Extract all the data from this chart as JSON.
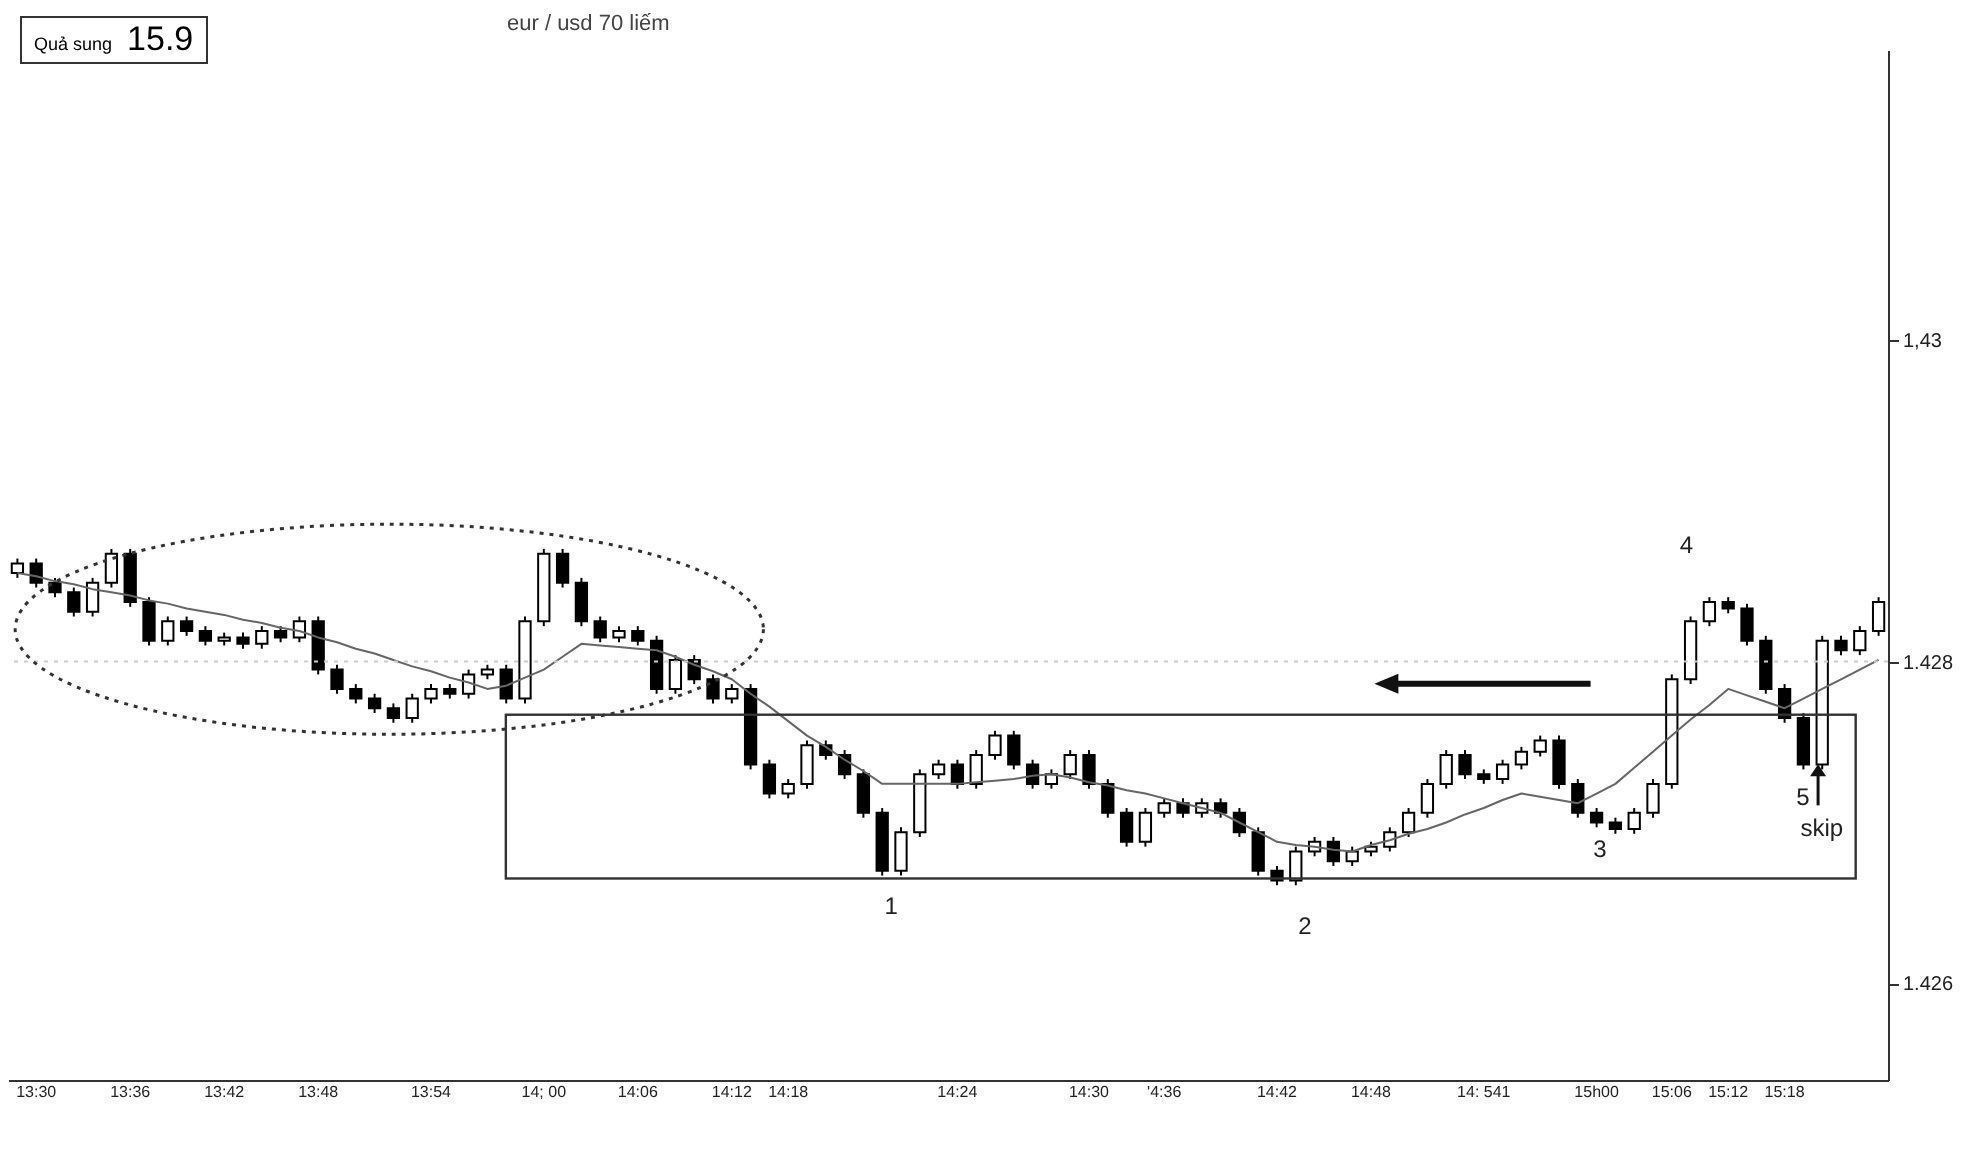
{
  "chart_data": {
    "type": "candlestick",
    "title": "eur / usd 70 liếm",
    "categories": [
      null,
      "13:30",
      null,
      null,
      null,
      null,
      "13:36",
      null,
      null,
      null,
      null,
      "13:42",
      null,
      null,
      null,
      null,
      "13:48",
      null,
      null,
      null,
      null,
      null,
      "13:54",
      null,
      null,
      null,
      null,
      null,
      "14; 00",
      null,
      null,
      null,
      null,
      "14:06",
      null,
      null,
      null,
      null,
      "14:12",
      null,
      null,
      "14:18",
      null,
      null,
      null,
      null,
      null,
      null,
      null,
      null,
      "14:24",
      null,
      null,
      null,
      null,
      null,
      null,
      "14:30",
      null,
      null,
      null,
      "'4:36",
      null,
      null,
      null,
      null,
      null,
      "14:42",
      null,
      null,
      null,
      null,
      "14:48",
      null,
      null,
      null,
      null,
      null,
      "14: 541",
      null,
      null,
      null,
      null,
      null,
      "15h00",
      null,
      null,
      null,
      "15:06",
      null,
      null,
      "15:12",
      null,
      null,
      "15:18",
      null,
      null,
      null,
      null,
      null
    ],
    "ohlc": [
      [
        1.42855,
        1.42864,
        1.42852,
        1.42861
      ],
      [
        1.42861,
        1.42864,
        1.42846,
        1.42849
      ],
      [
        1.42849,
        1.42852,
        1.4284,
        1.42843
      ],
      [
        1.42843,
        1.42846,
        1.42828,
        1.42831
      ],
      [
        1.42831,
        1.42852,
        1.42828,
        1.42849
      ],
      [
        1.42849,
        1.4287,
        1.42846,
        1.42867
      ],
      [
        1.42867,
        1.4287,
        1.42834,
        1.42837
      ],
      [
        1.42837,
        1.4284,
        1.4281,
        1.42813
      ],
      [
        1.42813,
        1.42828,
        1.4281,
        1.42825
      ],
      [
        1.42825,
        1.42828,
        1.42816,
        1.42819
      ],
      [
        1.42819,
        1.42822,
        1.4281,
        1.42813
      ],
      [
        1.42813,
        1.42818,
        1.4281,
        1.42815
      ],
      [
        1.42815,
        1.42818,
        1.42808,
        1.42811
      ],
      [
        1.42811,
        1.42822,
        1.42808,
        1.42819
      ],
      [
        1.42819,
        1.42822,
        1.42812,
        1.42815
      ],
      [
        1.42815,
        1.42828,
        1.42812,
        1.42825
      ],
      [
        1.42825,
        1.42828,
        1.42792,
        1.42795
      ],
      [
        1.42795,
        1.42798,
        1.4278,
        1.42783
      ],
      [
        1.42783,
        1.42786,
        1.42774,
        1.42777
      ],
      [
        1.42777,
        1.4278,
        1.42768,
        1.42771
      ],
      [
        1.42771,
        1.42774,
        1.42762,
        1.42765
      ],
      [
        1.42765,
        1.4278,
        1.42762,
        1.42777
      ],
      [
        1.42777,
        1.42786,
        1.42774,
        1.42783
      ],
      [
        1.42783,
        1.42786,
        1.42777,
        1.4278
      ],
      [
        1.4278,
        1.42795,
        1.42777,
        1.42792
      ],
      [
        1.42792,
        1.42798,
        1.42789,
        1.42795
      ],
      [
        1.42795,
        1.42798,
        1.42774,
        1.42777
      ],
      [
        1.42777,
        1.42828,
        1.42774,
        1.42825
      ],
      [
        1.42825,
        1.4287,
        1.42822,
        1.42867
      ],
      [
        1.42867,
        1.4287,
        1.42846,
        1.42849
      ],
      [
        1.42849,
        1.42852,
        1.42822,
        1.42825
      ],
      [
        1.42825,
        1.42828,
        1.42812,
        1.42815
      ],
      [
        1.42815,
        1.42822,
        1.42812,
        1.42819
      ],
      [
        1.42819,
        1.42822,
        1.4281,
        1.42813
      ],
      [
        1.42813,
        1.42816,
        1.4278,
        1.42783
      ],
      [
        1.42783,
        1.42804,
        1.4278,
        1.42801
      ],
      [
        1.42801,
        1.42804,
        1.42786,
        1.42789
      ],
      [
        1.42789,
        1.42792,
        1.42774,
        1.42777
      ],
      [
        1.42777,
        1.42786,
        1.42774,
        1.42783
      ],
      [
        1.42783,
        1.42786,
        1.42733,
        1.42736
      ],
      [
        1.42736,
        1.42739,
        1.42715,
        1.42718
      ],
      [
        1.42718,
        1.42727,
        1.42715,
        1.42724
      ],
      [
        1.42724,
        1.42751,
        1.42721,
        1.42748
      ],
      [
        1.42748,
        1.42751,
        1.42739,
        1.42742
      ],
      [
        1.42742,
        1.42745,
        1.42727,
        1.4273
      ],
      [
        1.4273,
        1.42733,
        1.42703,
        1.42706
      ],
      [
        1.42706,
        1.42709,
        1.42667,
        1.4267
      ],
      [
        1.4267,
        1.42697,
        1.42667,
        1.42694
      ],
      [
        1.42694,
        1.42733,
        1.42691,
        1.4273
      ],
      [
        1.4273,
        1.42739,
        1.42727,
        1.42736
      ],
      [
        1.42736,
        1.42739,
        1.42721,
        1.42724
      ],
      [
        1.42724,
        1.42745,
        1.42721,
        1.42742
      ],
      [
        1.42742,
        1.42757,
        1.42739,
        1.42754
      ],
      [
        1.42754,
        1.42757,
        1.42733,
        1.42736
      ],
      [
        1.42736,
        1.42739,
        1.42721,
        1.42724
      ],
      [
        1.42724,
        1.42733,
        1.42721,
        1.4273
      ],
      [
        1.4273,
        1.42745,
        1.42727,
        1.42742
      ],
      [
        1.42742,
        1.42745,
        1.42721,
        1.42724
      ],
      [
        1.42724,
        1.42727,
        1.42703,
        1.42706
      ],
      [
        1.42706,
        1.42709,
        1.42685,
        1.42688
      ],
      [
        1.42688,
        1.42709,
        1.42685,
        1.42706
      ],
      [
        1.42706,
        1.42715,
        1.42703,
        1.42712
      ],
      [
        1.42712,
        1.42715,
        1.42703,
        1.42706
      ],
      [
        1.42706,
        1.42715,
        1.42703,
        1.42712
      ],
      [
        1.42712,
        1.42715,
        1.42703,
        1.42706
      ],
      [
        1.42706,
        1.42709,
        1.42691,
        1.42694
      ],
      [
        1.42694,
        1.42697,
        1.42667,
        1.4267
      ],
      [
        1.4267,
        1.42673,
        1.42661,
        1.42664
      ],
      [
        1.42664,
        1.42685,
        1.42661,
        1.42682
      ],
      [
        1.42682,
        1.42691,
        1.42679,
        1.42688
      ],
      [
        1.42688,
        1.42691,
        1.42673,
        1.42676
      ],
      [
        1.42676,
        1.42685,
        1.42673,
        1.42682
      ],
      [
        1.42682,
        1.42688,
        1.42679,
        1.42685
      ],
      [
        1.42685,
        1.42697,
        1.42682,
        1.42694
      ],
      [
        1.42694,
        1.42709,
        1.42691,
        1.42706
      ],
      [
        1.42706,
        1.42727,
        1.42703,
        1.42724
      ],
      [
        1.42724,
        1.42745,
        1.42721,
        1.42742
      ],
      [
        1.42742,
        1.42745,
        1.42727,
        1.4273
      ],
      [
        1.4273,
        1.42733,
        1.42724,
        1.42727
      ],
      [
        1.42727,
        1.42739,
        1.42724,
        1.42736
      ],
      [
        1.42736,
        1.42747,
        1.42733,
        1.42744
      ],
      [
        1.42744,
        1.42754,
        1.42741,
        1.42751
      ],
      [
        1.42751,
        1.42754,
        1.42721,
        1.42724
      ],
      [
        1.42724,
        1.42727,
        1.42703,
        1.42706
      ],
      [
        1.42706,
        1.42709,
        1.42697,
        1.427
      ],
      [
        1.427,
        1.42703,
        1.42693,
        1.42696
      ],
      [
        1.42696,
        1.42709,
        1.42693,
        1.42706
      ],
      [
        1.42706,
        1.42727,
        1.42703,
        1.42724
      ],
      [
        1.42724,
        1.42792,
        1.42721,
        1.42789
      ],
      [
        1.42789,
        1.42828,
        1.42786,
        1.42825
      ],
      [
        1.42825,
        1.4284,
        1.42822,
        1.42837
      ],
      [
        1.42837,
        1.4284,
        1.4283,
        1.42833
      ],
      [
        1.42833,
        1.42836,
        1.4281,
        1.42813
      ],
      [
        1.42813,
        1.42816,
        1.4278,
        1.42783
      ],
      [
        1.42783,
        1.42786,
        1.42762,
        1.42765
      ],
      [
        1.42765,
        1.42768,
        1.42733,
        1.42736
      ],
      [
        1.42736,
        1.42816,
        1.42733,
        1.42813
      ],
      [
        1.42813,
        1.42816,
        1.42804,
        1.42807
      ],
      [
        1.42807,
        1.42822,
        1.42804,
        1.42819
      ],
      [
        1.42819,
        1.4284,
        1.42816,
        1.42837
      ]
    ],
    "series": [
      {
        "type": "line",
        "color": "#666666",
        "values": [
          1.42855,
          1.42853,
          1.4285,
          1.42848,
          1.42845,
          1.42843,
          1.42841,
          1.42838,
          1.42836,
          1.42833,
          1.42831,
          1.42829,
          1.42826,
          1.42824,
          1.42821,
          1.42819,
          1.42815,
          1.42812,
          1.42808,
          1.42805,
          1.42801,
          1.42797,
          1.42794,
          1.4279,
          1.42787,
          1.42783,
          1.42785,
          1.4279,
          1.42795,
          1.42803,
          1.42811,
          1.4281,
          1.42809,
          1.42808,
          1.42807,
          1.42803,
          1.42798,
          1.42794,
          1.42789,
          1.4278,
          1.42772,
          1.42763,
          1.42754,
          1.42747,
          1.42739,
          1.42732,
          1.42724,
          1.42724,
          1.42724,
          1.42724,
          1.42724,
          1.42725,
          1.42726,
          1.42727,
          1.42729,
          1.4273,
          1.42728,
          1.42725,
          1.42723,
          1.4272,
          1.42718,
          1.42715,
          1.42712,
          1.42709,
          1.42706,
          1.427,
          1.42694,
          1.42688,
          1.42686,
          1.42685,
          1.42683,
          1.42682,
          1.42686,
          1.42689,
          1.42693,
          1.42696,
          1.427,
          1.42705,
          1.42709,
          1.42714,
          1.42718,
          1.42716,
          1.42714,
          1.42712,
          1.42718,
          1.42724,
          1.42734,
          1.42744,
          1.42754,
          1.42764,
          1.42773,
          1.42783,
          1.42779,
          1.42775,
          1.42771,
          1.42777,
          1.42783,
          1.42789,
          1.42795,
          1.42801
        ]
      }
    ],
    "ylim": [
      1.4254,
      1.4318
    ],
    "yticks": [
      {
        "value": 1.43,
        "label": "1,43"
      },
      {
        "value": 1.428,
        "label": "1.428"
      },
      {
        "value": 1.426,
        "label": "1.426"
      }
    ],
    "ref_lines": [
      {
        "axis": "y",
        "value": 1.428,
        "color": "#cccccc",
        "line_style": "dotted"
      }
    ],
    "annotations": [
      "Quả sung 15.9",
      "1",
      "2",
      "3",
      "4",
      "5",
      "skip"
    ]
  }
}
